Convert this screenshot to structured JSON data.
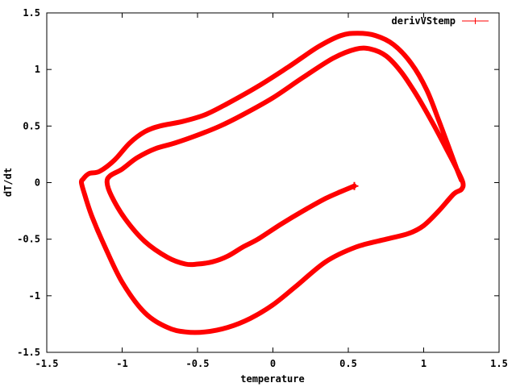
{
  "chart_data": {
    "type": "line",
    "title": "",
    "xlabel": "temperature",
    "ylabel": "dT/dt",
    "xlim": [
      -1.5,
      1.5
    ],
    "ylim": [
      -1.5,
      1.5
    ],
    "xticks": [
      -1.5,
      -1,
      -0.5,
      0,
      0.5,
      1,
      1.5
    ],
    "yticks": [
      -1.5,
      -1,
      -0.5,
      0,
      0.5,
      1,
      1.5
    ],
    "xtick_labels": [
      "-1.5",
      "-1",
      "-0.5",
      "0",
      "0.5",
      "1",
      "1.5"
    ],
    "ytick_labels": [
      "-1.5",
      "-1",
      "-0.5",
      "0",
      "0.5",
      "1",
      "1.5"
    ],
    "grid": false,
    "legend_position": "top-right",
    "series": [
      {
        "name": "derivVStemp",
        "color": "#ff0000",
        "marker": "plus",
        "x": [
          0.54,
          0.45,
          0.35,
          0.2,
          0.05,
          -0.1,
          -0.2,
          -0.3,
          -0.4,
          -0.5,
          -0.58,
          -0.7,
          -0.85,
          -0.98,
          -1.07,
          -1.1,
          -1.08,
          -1.0,
          -0.9,
          -0.78,
          -0.65,
          -0.5,
          -0.35,
          -0.2,
          0.0,
          0.2,
          0.4,
          0.55,
          0.65,
          0.75,
          0.85,
          0.95,
          1.05,
          1.15,
          1.22,
          1.26,
          1.25,
          1.2,
          1.1,
          1.0,
          0.9,
          0.75,
          0.55,
          0.35,
          0.15,
          0.0,
          -0.15,
          -0.3,
          -0.45,
          -0.58,
          -0.7,
          -0.85,
          -1.0,
          -1.12,
          -1.2,
          -1.25,
          -1.27,
          -1.26,
          -1.22,
          -1.15,
          -1.05,
          -0.95,
          -0.85,
          -0.75,
          -0.6,
          -0.45,
          -0.3,
          -0.1,
          0.1,
          0.3,
          0.45,
          0.56,
          0.68,
          0.8,
          0.92,
          1.02,
          1.1,
          1.17,
          1.22,
          1.25
        ],
        "y": [
          -0.03,
          -0.08,
          -0.14,
          -0.25,
          -0.37,
          -0.5,
          -0.57,
          -0.65,
          -0.7,
          -0.72,
          -0.72,
          -0.66,
          -0.52,
          -0.32,
          -0.12,
          0.0,
          0.06,
          0.12,
          0.22,
          0.3,
          0.35,
          0.42,
          0.5,
          0.6,
          0.75,
          0.93,
          1.1,
          1.18,
          1.18,
          1.12,
          0.98,
          0.78,
          0.55,
          0.3,
          0.12,
          0.0,
          -0.06,
          -0.1,
          -0.25,
          -0.38,
          -0.45,
          -0.5,
          -0.57,
          -0.7,
          -0.92,
          -1.08,
          -1.2,
          -1.28,
          -1.32,
          -1.32,
          -1.28,
          -1.15,
          -0.88,
          -0.55,
          -0.3,
          -0.1,
          0.0,
          0.03,
          0.08,
          0.1,
          0.2,
          0.35,
          0.45,
          0.5,
          0.54,
          0.6,
          0.7,
          0.85,
          1.02,
          1.2,
          1.3,
          1.32,
          1.3,
          1.22,
          1.05,
          0.82,
          0.55,
          0.3,
          0.12,
          0.02
        ]
      }
    ]
  }
}
